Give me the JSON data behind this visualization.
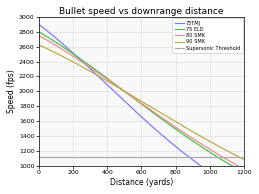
{
  "title": "Bullet speed vs downrange distance",
  "xlabel": "Distance (yards)",
  "ylabel": "Speed (fps)",
  "xlim": [
    0,
    1200
  ],
  "ylim": [
    1000,
    3000
  ],
  "yticks": [
    1000,
    1200,
    1400,
    1600,
    1800,
    2000,
    2200,
    2400,
    2600,
    2800,
    3000
  ],
  "xticks": [
    0,
    200,
    400,
    600,
    800,
    1000,
    1200
  ],
  "supersonic_threshold": 1125,
  "line_params": [
    {
      "label": "75TMJ",
      "color": "#7777ff",
      "v0": 2900,
      "k1": 0.0006,
      "k2": 5.5e-07
    },
    {
      "label": "75 ELD",
      "color": "#44bb44",
      "v0": 2800,
      "k1": 0.00048,
      "k2": 3.8e-07
    },
    {
      "label": "80 SMK",
      "color": "#ee8888",
      "v0": 2750,
      "k1": 0.00046,
      "k2": 3.5e-07
    },
    {
      "label": "90 SMK",
      "color": "#bbaa44",
      "v0": 2625,
      "k1": 0.0004,
      "k2": 2.8e-07
    }
  ],
  "threshold_color": "#aaaaaa",
  "background_color": "#f8f8f8",
  "grid_color": "#e0e0e0",
  "figure_color": "#ffffff"
}
